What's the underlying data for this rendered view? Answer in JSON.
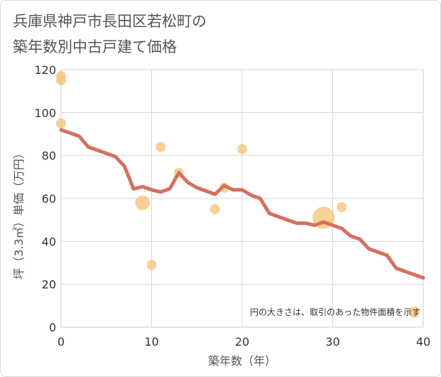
{
  "title_line1": "兵庫県神戸市長田区若松町の",
  "title_line2": "築年数別中古戸建て価格",
  "chart_data": {
    "type": "scatter",
    "xlabel": "築年数（年）",
    "ylabel": "坪（3.3㎡）単価（万円）",
    "xlim": [
      0,
      40
    ],
    "ylim": [
      0,
      120
    ],
    "x_ticks": [
      0,
      10,
      20,
      30,
      40
    ],
    "y_ticks": [
      0,
      20,
      40,
      60,
      80,
      100,
      120
    ],
    "grid": true,
    "note": "円の大きさは、取引のあった物件面積を示す",
    "colors": {
      "points": "#f5c170",
      "line": "#d4705f"
    },
    "points": [
      {
        "x": 0,
        "y": 117,
        "size": 1
      },
      {
        "x": 0,
        "y": 115,
        "size": 1
      },
      {
        "x": 0,
        "y": 95,
        "size": 1
      },
      {
        "x": 9,
        "y": 58,
        "size": 2.2
      },
      {
        "x": 10,
        "y": 29,
        "size": 1
      },
      {
        "x": 11,
        "y": 84,
        "size": 1
      },
      {
        "x": 13,
        "y": 72,
        "size": 1
      },
      {
        "x": 17,
        "y": 55,
        "size": 1
      },
      {
        "x": 18,
        "y": 65,
        "size": 1
      },
      {
        "x": 20,
        "y": 83,
        "size": 1
      },
      {
        "x": 29,
        "y": 51,
        "size": 5
      },
      {
        "x": 31,
        "y": 56,
        "size": 1
      },
      {
        "x": 39,
        "y": 7,
        "size": 1.3
      }
    ],
    "trend": {
      "x": [
        0,
        1,
        2,
        3,
        4,
        5,
        6,
        7,
        8,
        9,
        10,
        11,
        12,
        13,
        14,
        15,
        16,
        17,
        18,
        19,
        20,
        21,
        22,
        23,
        24,
        25,
        26,
        27,
        28,
        29,
        30,
        31,
        32,
        33,
        34,
        35,
        36,
        37,
        38,
        39,
        40
      ],
      "y": [
        92,
        90.5,
        89,
        84,
        82.5,
        81,
        79.5,
        75,
        64.5,
        65.5,
        64,
        63,
        64.5,
        72,
        67.5,
        65,
        63.5,
        62,
        66,
        64,
        64,
        61.5,
        60,
        53,
        51.5,
        50,
        48.5,
        48.5,
        47.5,
        49,
        47.5,
        46,
        42.5,
        41,
        36.5,
        35,
        33.5,
        27.5,
        26,
        24.5,
        23
      ]
    }
  }
}
